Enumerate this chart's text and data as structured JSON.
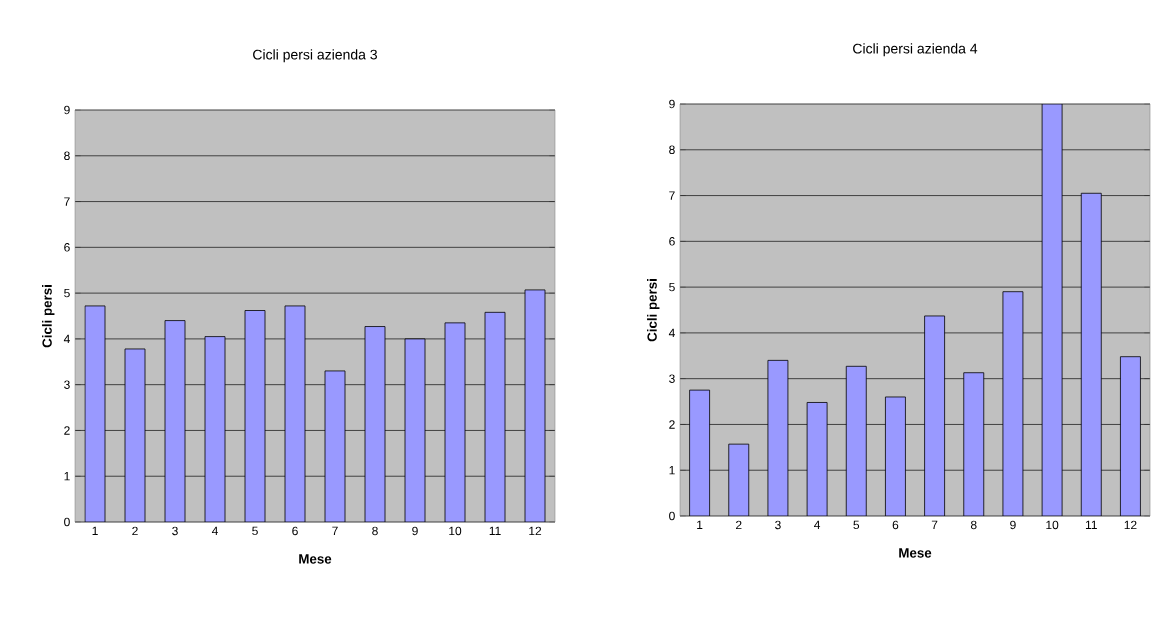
{
  "chart_data": [
    {
      "type": "bar",
      "title": "Cicli persi azienda 3",
      "xlabel": "Mese",
      "ylabel": "Cicli persi",
      "categories": [
        "1",
        "2",
        "3",
        "4",
        "5",
        "6",
        "7",
        "8",
        "9",
        "10",
        "11",
        "12"
      ],
      "values": [
        4.72,
        3.78,
        4.4,
        4.05,
        4.62,
        4.72,
        3.3,
        4.27,
        4.0,
        4.35,
        4.58,
        5.07
      ],
      "color": "#9999ff",
      "ylim": [
        0,
        9
      ],
      "yticks": [
        0,
        1,
        2,
        3,
        4,
        5,
        6,
        7,
        8,
        9
      ],
      "grid": "y"
    },
    {
      "type": "bar",
      "title": "Cicli persi azienda 4",
      "xlabel": "Mese",
      "ylabel": "Cicli persi",
      "categories": [
        "1",
        "2",
        "3",
        "4",
        "5",
        "6",
        "7",
        "8",
        "9",
        "10",
        "11",
        "12"
      ],
      "values": [
        2.75,
        1.57,
        3.4,
        2.48,
        3.27,
        2.6,
        4.37,
        3.13,
        4.9,
        9,
        7.05,
        3.48
      ],
      "color": "#9999ff",
      "ylim": [
        0,
        9
      ],
      "yticks": [
        0,
        1,
        2,
        3,
        4,
        5,
        6,
        7,
        8,
        9
      ],
      "grid": "y"
    }
  ]
}
